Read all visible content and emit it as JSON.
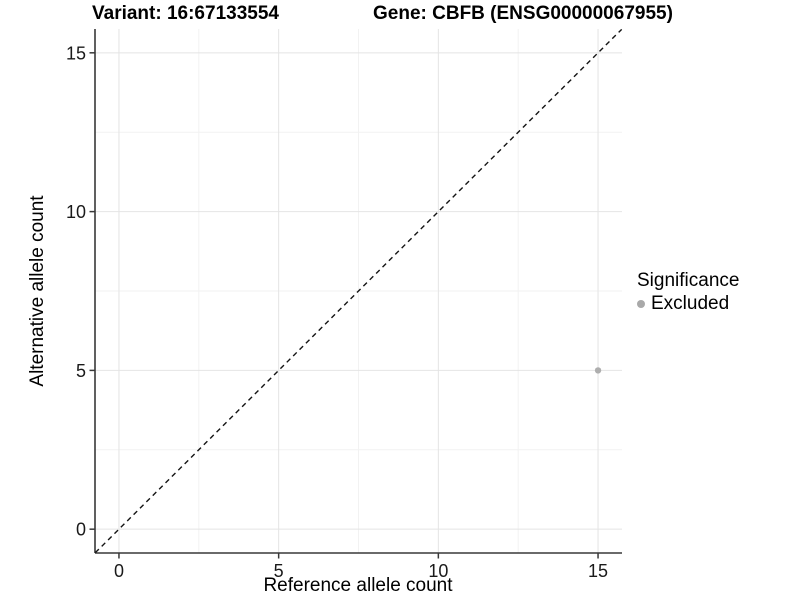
{
  "chart_data": {
    "type": "scatter",
    "titles": {
      "left": "Variant: 16:67133554",
      "right": "Gene: CBFB (ENSG00000067955)"
    },
    "xlabel": "Reference allele count",
    "ylabel": "Alternative allele count",
    "xlim": [
      -0.75,
      15.75
    ],
    "ylim": [
      -0.75,
      15.75
    ],
    "x_ticks": [
      0,
      5,
      10,
      15
    ],
    "y_ticks": [
      0,
      5,
      10,
      15
    ],
    "x_minor_ticks": [
      2.5,
      7.5,
      12.5
    ],
    "y_minor_ticks": [
      2.5,
      7.5,
      12.5
    ],
    "grid": "major and minor gridlines on white background",
    "points": [
      {
        "x": 15,
        "y": 5,
        "series": "Excluded"
      }
    ],
    "identity_line": {
      "slope": 1,
      "intercept": 0,
      "style": "dashed",
      "color": "#141414"
    },
    "legend": {
      "title": "Significance",
      "position": "right",
      "items": [
        {
          "label": "Excluded",
          "color": "#a9a9a9"
        }
      ]
    }
  },
  "colors": {
    "point": "#aeaeae",
    "grid_major": "#e4e4e4",
    "grid_minor": "#f2f2f2",
    "axis_line": "#383838",
    "tick_text": "#1a1a1a",
    "background": "#ffffff"
  }
}
